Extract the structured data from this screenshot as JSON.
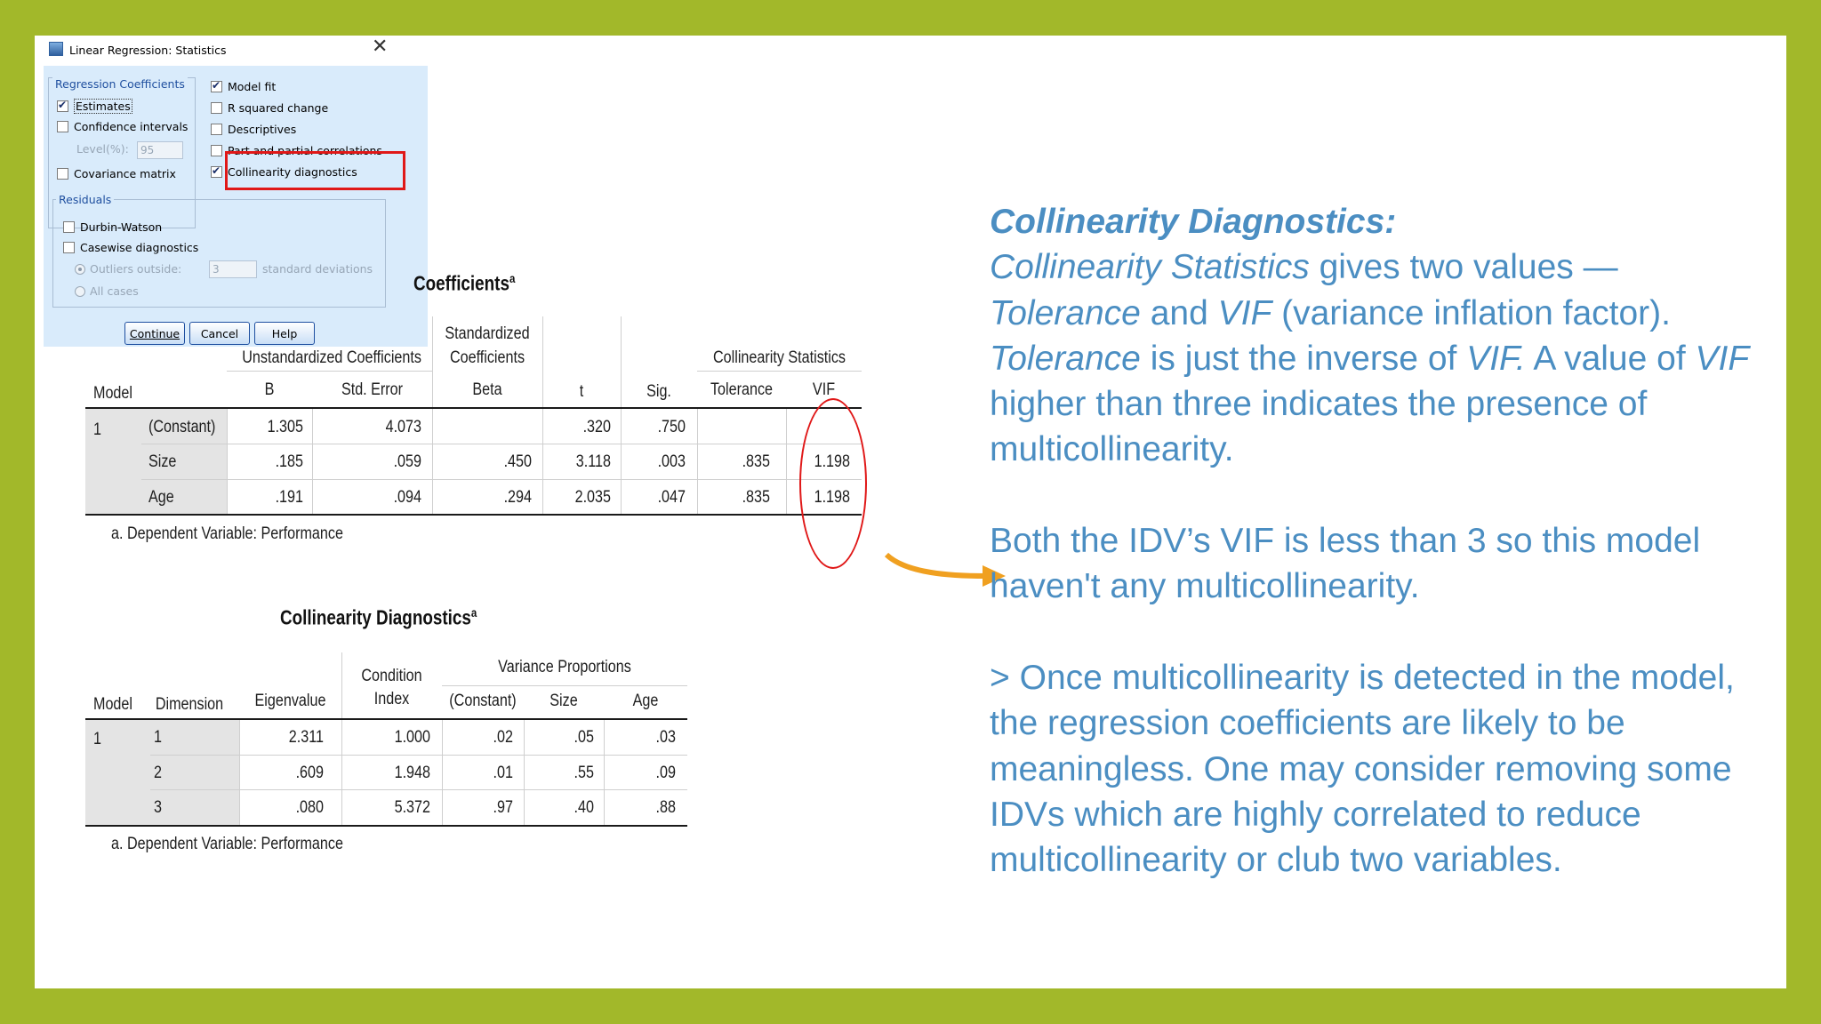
{
  "dialog": {
    "title": "Linear Regression: Statistics",
    "close_label": "✕",
    "regression_coefficients": {
      "label": "Regression Coefficients",
      "estimates": "Estimates",
      "confidence_intervals": "Confidence intervals",
      "level_label": "Level(%):",
      "level_value": "95",
      "covariance_matrix": "Covariance matrix"
    },
    "options": {
      "model_fit": "Model fit",
      "r_squared_change": "R squared change",
      "descriptives": "Descriptives",
      "part_partial": "Part and partial correlations",
      "collinearity_diagnostics": "Collinearity diagnostics"
    },
    "residuals": {
      "label": "Residuals",
      "durbin_watson": "Durbin-Watson",
      "casewise": "Casewise diagnostics",
      "outliers_outside": "Outliers outside:",
      "outliers_value": "3",
      "standard_deviations": "standard deviations",
      "all_cases": "All cases"
    },
    "buttons": {
      "continue": "Continue",
      "cancel": "Cancel",
      "help": "Help"
    }
  },
  "coefficients": {
    "title": "Coefficients",
    "title_sup": "a",
    "headers": {
      "model": "Model",
      "unstandardized": "Unstandardized Coefficients",
      "standardized_1": "Standardized",
      "standardized_2": "Coefficients",
      "collinearity": "Collinearity Statistics",
      "b": "B",
      "std_error": "Std. Error",
      "beta": "Beta",
      "t": "t",
      "sig": "Sig.",
      "tolerance": "Tolerance",
      "vif": "VIF"
    },
    "model_number": "1",
    "rows": [
      {
        "name": "(Constant)",
        "b": "1.305",
        "se": "4.073",
        "beta": "",
        "t": ".320",
        "sig": ".750",
        "tol": "",
        "vif": ""
      },
      {
        "name": "Size",
        "b": ".185",
        "se": ".059",
        "beta": ".450",
        "t": "3.118",
        "sig": ".003",
        "tol": ".835",
        "vif": "1.198"
      },
      {
        "name": "Age",
        "b": ".191",
        "se": ".094",
        "beta": ".294",
        "t": "2.035",
        "sig": ".047",
        "tol": ".835",
        "vif": "1.198"
      }
    ],
    "footnote": "a. Dependent Variable: Performance"
  },
  "collinearity_diagnostics": {
    "title": "Collinearity Diagnostics",
    "title_sup": "a",
    "headers": {
      "model": "Model",
      "dimension": "Dimension",
      "eigenvalue": "Eigenvalue",
      "condition_1": "Condition",
      "condition_2": "Index",
      "variance_proportions": "Variance Proportions",
      "constant": "(Constant)",
      "size": "Size",
      "age": "Age"
    },
    "model_number": "1",
    "rows": [
      {
        "dim": "1",
        "eig": "2.311",
        "ci": "1.000",
        "c": ".02",
        "s": ".05",
        "a": ".03"
      },
      {
        "dim": "2",
        "eig": ".609",
        "ci": "1.948",
        "c": ".01",
        "s": ".55",
        "a": ".09"
      },
      {
        "dim": "3",
        "eig": ".080",
        "ci": "5.372",
        "c": ".97",
        "s": ".40",
        "a": ".88"
      }
    ],
    "footnote": "a. Dependent Variable: Performance"
  },
  "explanation": {
    "heading": "Collinearity Diagnostics:",
    "p1_a": " Collinearity Statistics",
    "p1_b": " gives two values —",
    "p1_c": "Tolerance",
    "p1_d": " and ",
    "p1_e": "VIF",
    "p1_f": " (variance inflation factor). ",
    "p1_g": "Tolerance",
    "p1_h": " is just the inverse of ",
    "p1_i": "VIF.",
    "p1_j": " A value of ",
    "p1_k": "VIF",
    "p1_l": " higher than three indicates the presence of  multicollinearity.",
    "p2": "Both the IDV’s VIF is less than 3 so this model haven't any multicollinearity.",
    "p3": "> Once multicollinearity is detected in the model, the regression coefficients are likely to be meaningless. One may consider removing some IDVs which are highly correlated to reduce multicollinearity or club two variables."
  },
  "colors": {
    "frame": "#a2b82a",
    "text_blue": "#4b8ec2",
    "highlight_red": "#e01818",
    "arrow_orange": "#f0a020",
    "dialog_bg": "#d9ebfb"
  }
}
